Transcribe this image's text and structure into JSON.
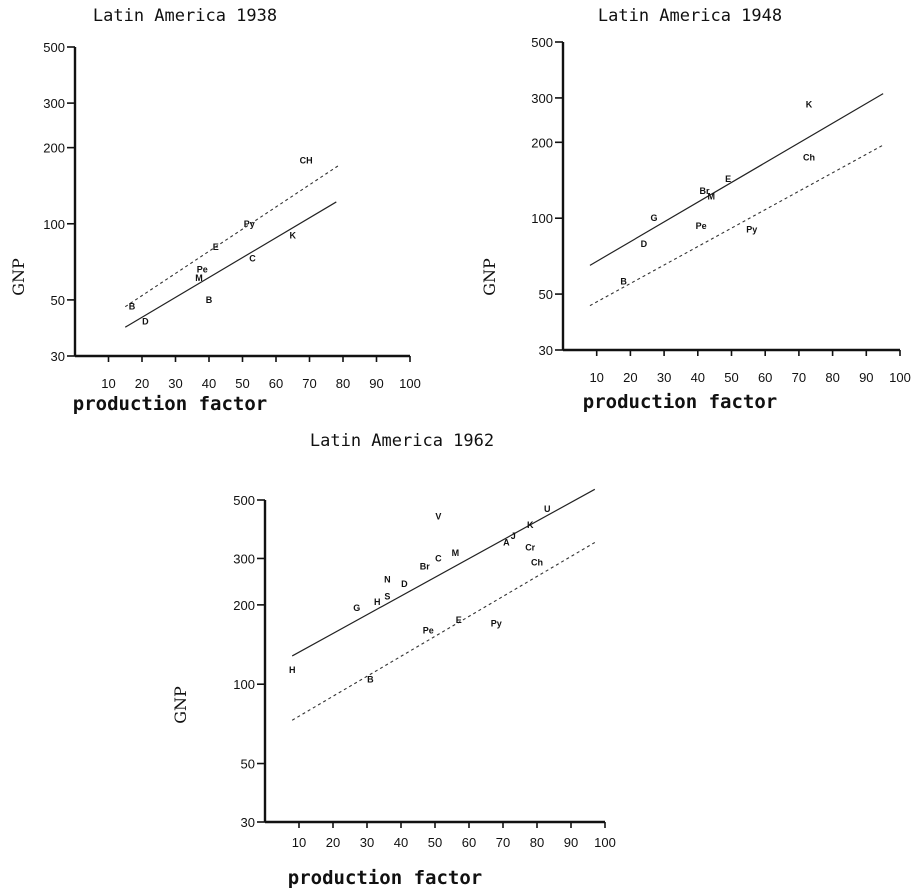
{
  "chart_data": [
    {
      "type": "scatter",
      "title": "Latin America 1938",
      "xlabel": "production factor",
      "ylabel": "GNP",
      "xlim": [
        0,
        100
      ],
      "ylim": [
        30,
        500
      ],
      "yscale": "log",
      "xticks": [
        "10",
        "20",
        "30",
        "40",
        "50",
        "60",
        "70",
        "80",
        "90",
        "100"
      ],
      "yticks": [
        "30",
        "50",
        "100",
        "200",
        "300",
        "500"
      ],
      "grid": false,
      "points": [
        {
          "label": "B",
          "x": 17,
          "y": 47
        },
        {
          "label": "D",
          "x": 21,
          "y": 41
        },
        {
          "label": "M",
          "x": 37,
          "y": 61
        },
        {
          "label": "Pe",
          "x": 38,
          "y": 66
        },
        {
          "label": "B",
          "x": 40,
          "y": 50
        },
        {
          "label": "E",
          "x": 42,
          "y": 81
        },
        {
          "label": "Py",
          "x": 52,
          "y": 100
        },
        {
          "label": "C",
          "x": 53,
          "y": 73
        },
        {
          "label": "K",
          "x": 65,
          "y": 90
        },
        {
          "label": "CH",
          "x": 69,
          "y": 178
        }
      ],
      "lines": [
        {
          "style": "solid",
          "x": [
            15,
            78
          ],
          "y": [
            39,
            122
          ]
        },
        {
          "style": "dashed",
          "x": [
            15,
            79
          ],
          "y": [
            47,
            171
          ]
        }
      ]
    },
    {
      "type": "scatter",
      "title": "Latin America 1948",
      "xlabel": "production factor",
      "ylabel": "GNP",
      "xlim": [
        0,
        100
      ],
      "ylim": [
        30,
        500
      ],
      "yscale": "log",
      "xticks": [
        "10",
        "20",
        "30",
        "40",
        "50",
        "60",
        "70",
        "80",
        "90",
        "100"
      ],
      "yticks": [
        "30",
        "50",
        "100",
        "200",
        "300",
        "500"
      ],
      "grid": false,
      "points": [
        {
          "label": "B",
          "x": 18,
          "y": 56
        },
        {
          "label": "D",
          "x": 24,
          "y": 79
        },
        {
          "label": "G",
          "x": 27,
          "y": 100
        },
        {
          "label": "Pe",
          "x": 41,
          "y": 93
        },
        {
          "label": "Br",
          "x": 42,
          "y": 128
        },
        {
          "label": "M",
          "x": 44,
          "y": 122
        },
        {
          "label": "E",
          "x": 49,
          "y": 143
        },
        {
          "label": "Py",
          "x": 56,
          "y": 90
        },
        {
          "label": "Ch",
          "x": 73,
          "y": 174
        },
        {
          "label": "K",
          "x": 73,
          "y": 283
        }
      ],
      "lines": [
        {
          "style": "solid",
          "x": [
            8,
            95
          ],
          "y": [
            65,
            312
          ]
        },
        {
          "style": "dashed",
          "x": [
            8,
            95
          ],
          "y": [
            45,
            195
          ]
        }
      ]
    },
    {
      "type": "scatter",
      "title": "Latin America 1962",
      "xlabel": "production factor",
      "ylabel": "GNP",
      "xlim": [
        0,
        100
      ],
      "ylim": [
        30,
        500
      ],
      "yscale": "log",
      "xticks": [
        "10",
        "20",
        "30",
        "40",
        "50",
        "60",
        "70",
        "80",
        "90",
        "100"
      ],
      "yticks": [
        "30",
        "50",
        "100",
        "200",
        "300",
        "500"
      ],
      "grid": false,
      "points": [
        {
          "label": "H",
          "x": 8,
          "y": 113
        },
        {
          "label": "B",
          "x": 31,
          "y": 104
        },
        {
          "label": "G",
          "x": 27,
          "y": 195
        },
        {
          "label": "H",
          "x": 33,
          "y": 205
        },
        {
          "label": "S",
          "x": 36,
          "y": 215
        },
        {
          "label": "N",
          "x": 36,
          "y": 250
        },
        {
          "label": "D",
          "x": 41,
          "y": 240
        },
        {
          "label": "Br",
          "x": 47,
          "y": 280
        },
        {
          "label": "Pe",
          "x": 48,
          "y": 160
        },
        {
          "label": "C",
          "x": 51,
          "y": 300
        },
        {
          "label": "M",
          "x": 56,
          "y": 315
        },
        {
          "label": "E",
          "x": 57,
          "y": 175
        },
        {
          "label": "V",
          "x": 51,
          "y": 432
        },
        {
          "label": "Py",
          "x": 68,
          "y": 170
        },
        {
          "label": "A",
          "x": 71,
          "y": 345
        },
        {
          "label": "J",
          "x": 73,
          "y": 365
        },
        {
          "label": "K",
          "x": 78,
          "y": 402
        },
        {
          "label": "Cr",
          "x": 78,
          "y": 330
        },
        {
          "label": "U",
          "x": 83,
          "y": 462
        },
        {
          "label": "Ch",
          "x": 80,
          "y": 290
        }
      ],
      "lines": [
        {
          "style": "solid",
          "x": [
            8,
            97
          ],
          "y": [
            128,
            549
          ]
        },
        {
          "style": "dashed",
          "x": [
            8,
            97
          ],
          "y": [
            73,
            345
          ]
        }
      ]
    }
  ]
}
